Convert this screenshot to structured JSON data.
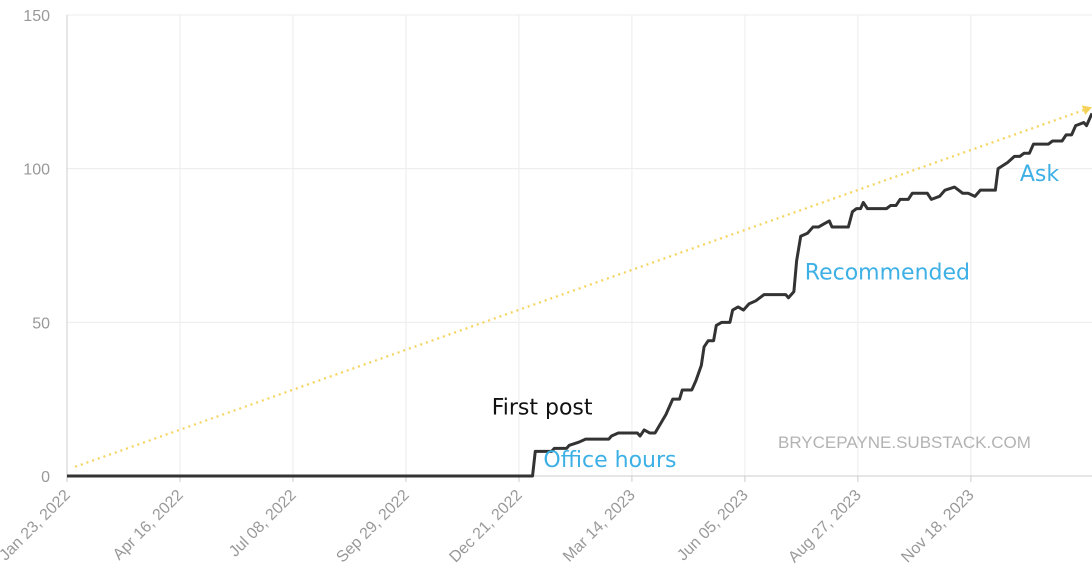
{
  "chart_data": {
    "type": "line",
    "title": "",
    "xlabel": "",
    "ylabel": "",
    "ylim": [
      0,
      150
    ],
    "y_ticks": [
      "0",
      "50",
      "100",
      "150"
    ],
    "x_ticks": [
      "Jan 23, 2022",
      "Apr 16, 2022",
      "Jul 08, 2022",
      "Sep 29, 2022",
      "Dec 21, 2022",
      "Mar 14, 2023",
      "Jun 05, 2023",
      "Aug 27, 2023",
      "Nov 18, 2023"
    ],
    "x_range": [
      "2022-01-23",
      "2024-02-15"
    ],
    "grid": true,
    "legend": "none",
    "watermark": "BRYCEPAYNE.SUBSTACK.COM",
    "colors": {
      "series": "#333333",
      "trend": "#f5d35a",
      "annotation_blue": "#3db0e6",
      "annotation_black": "#111111",
      "grid": "#ececec",
      "axis": "#cccccc"
    },
    "series": [
      {
        "points": [
          [
            "2022-01-23",
            0
          ],
          [
            "2022-12-31",
            0
          ],
          [
            "2023-01-02",
            8
          ],
          [
            "2023-01-14",
            8
          ],
          [
            "2023-01-16",
            9
          ],
          [
            "2023-01-25",
            9
          ],
          [
            "2023-01-27",
            10
          ],
          [
            "2023-02-03",
            11
          ],
          [
            "2023-02-08",
            12
          ],
          [
            "2023-02-25",
            12
          ],
          [
            "2023-02-27",
            13
          ],
          [
            "2023-03-04",
            14
          ],
          [
            "2023-03-18",
            14
          ],
          [
            "2023-03-20",
            13
          ],
          [
            "2023-03-23",
            15
          ],
          [
            "2023-03-27",
            14
          ],
          [
            "2023-03-31",
            14
          ],
          [
            "2023-04-04",
            17
          ],
          [
            "2023-04-08",
            20
          ],
          [
            "2023-04-13",
            25
          ],
          [
            "2023-04-18",
            25
          ],
          [
            "2023-04-20",
            28
          ],
          [
            "2023-04-27",
            28
          ],
          [
            "2023-04-30",
            31
          ],
          [
            "2023-05-04",
            36
          ],
          [
            "2023-05-06",
            42
          ],
          [
            "2023-05-09",
            44
          ],
          [
            "2023-05-13",
            44
          ],
          [
            "2023-05-15",
            49
          ],
          [
            "2023-05-19",
            50
          ],
          [
            "2023-05-25",
            50
          ],
          [
            "2023-05-27",
            54
          ],
          [
            "2023-05-31",
            55
          ],
          [
            "2023-06-04",
            54
          ],
          [
            "2023-06-08",
            56
          ],
          [
            "2023-06-13",
            57
          ],
          [
            "2023-06-19",
            59
          ],
          [
            "2023-07-05",
            59
          ],
          [
            "2023-07-07",
            58
          ],
          [
            "2023-07-11",
            60
          ],
          [
            "2023-07-13",
            70
          ],
          [
            "2023-07-16",
            78
          ],
          [
            "2023-07-21",
            79
          ],
          [
            "2023-07-25",
            81
          ],
          [
            "2023-07-29",
            81
          ],
          [
            "2023-08-02",
            82
          ],
          [
            "2023-08-06",
            83
          ],
          [
            "2023-08-08",
            81
          ],
          [
            "2023-08-20",
            81
          ],
          [
            "2023-08-23",
            86
          ],
          [
            "2023-08-26",
            87
          ],
          [
            "2023-08-29",
            87
          ],
          [
            "2023-08-31",
            89
          ],
          [
            "2023-09-03",
            87
          ],
          [
            "2023-09-17",
            87
          ],
          [
            "2023-09-20",
            88
          ],
          [
            "2023-09-24",
            88
          ],
          [
            "2023-09-27",
            90
          ],
          [
            "2023-10-03",
            90
          ],
          [
            "2023-10-06",
            92
          ],
          [
            "2023-10-17",
            92
          ],
          [
            "2023-10-20",
            90
          ],
          [
            "2023-10-26",
            91
          ],
          [
            "2023-10-30",
            93
          ],
          [
            "2023-11-06",
            94
          ],
          [
            "2023-11-12",
            92
          ],
          [
            "2023-11-16",
            92
          ],
          [
            "2023-11-21",
            91
          ],
          [
            "2023-11-25",
            93
          ],
          [
            "2023-12-06",
            93
          ],
          [
            "2023-12-08",
            100
          ],
          [
            "2023-12-15",
            102
          ],
          [
            "2023-12-20",
            104
          ],
          [
            "2023-12-24",
            104
          ],
          [
            "2023-12-27",
            105
          ],
          [
            "2023-12-31",
            105
          ],
          [
            "2024-01-03",
            108
          ],
          [
            "2024-01-14",
            108
          ],
          [
            "2024-01-17",
            109
          ],
          [
            "2024-01-24",
            109
          ],
          [
            "2024-01-27",
            111
          ],
          [
            "2024-01-31",
            111
          ],
          [
            "2024-02-03",
            114
          ],
          [
            "2024-02-09",
            115
          ],
          [
            "2024-02-11",
            114
          ],
          [
            "2024-02-15",
            118
          ]
        ]
      }
    ],
    "trend_line": [
      [
        "2022-01-29",
        3
      ],
      [
        "2024-02-15",
        120
      ]
    ],
    "annotations": [
      {
        "text": "First post",
        "x": "2022-12-01",
        "y": 20,
        "color": "#111111"
      },
      {
        "text": "Office hours",
        "x": "2023-01-08",
        "y": 3,
        "color": "#3db0e6"
      },
      {
        "text": "Recommended",
        "x": "2023-07-19",
        "y": 64,
        "color": "#3db0e6"
      },
      {
        "text": "Ask",
        "x": "2023-12-24",
        "y": 96,
        "color": "#3db0e6"
      }
    ]
  }
}
